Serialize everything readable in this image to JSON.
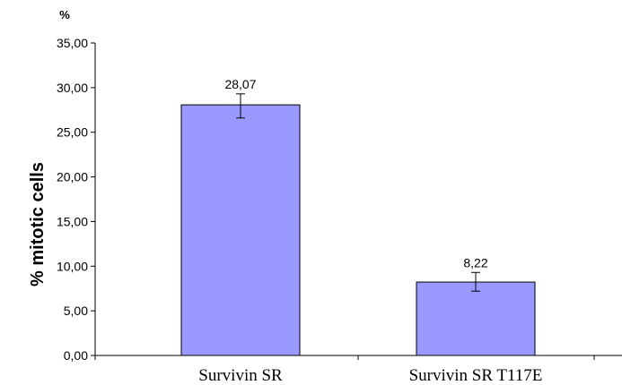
{
  "chart_data": {
    "type": "bar",
    "categories": [
      "Survivin SR",
      "Survivin SR T117E"
    ],
    "values": [
      28.07,
      8.22
    ],
    "value_labels": [
      "28,07",
      "8,22"
    ],
    "error_bars": [
      {
        "low": 26.6,
        "high": 29.3
      },
      {
        "low": 7.2,
        "high": 9.3
      }
    ],
    "ylabel": "% mitotic cells",
    "y_unit_label": "%",
    "ylim": [
      0,
      35
    ],
    "ytick_step": 5,
    "ytick_labels": [
      "0,00",
      "5,00",
      "10,00",
      "15,00",
      "20,00",
      "25,00",
      "30,00",
      "35,00"
    ],
    "grid": false,
    "legend": "none",
    "colors": {
      "bar_fill": "#9999ff",
      "bar_stroke": "#000000",
      "axis": "#000000"
    }
  }
}
